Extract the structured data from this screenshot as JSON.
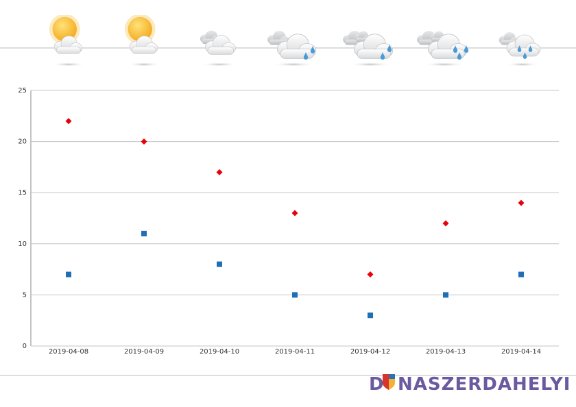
{
  "chart_data": {
    "type": "scatter",
    "categories": [
      "2019-04-08",
      "2019-04-09",
      "2019-04-10",
      "2019-04-11",
      "2019-04-12",
      "2019-04-13",
      "2019-04-14"
    ],
    "series": [
      {
        "color": "#e8000b",
        "marker": "diamond",
        "values": [
          22,
          20,
          17,
          13,
          7,
          12,
          14
        ]
      },
      {
        "color": "#1f6fb5",
        "marker": "square",
        "values": [
          7,
          11,
          8,
          5,
          3,
          5,
          7
        ]
      }
    ],
    "ylim": [
      0,
      25
    ],
    "yticks": [
      0,
      5,
      10,
      15,
      20,
      25
    ],
    "grid": true
  },
  "logo": {
    "left": "D",
    "right": "NASZERDAHELYI"
  }
}
